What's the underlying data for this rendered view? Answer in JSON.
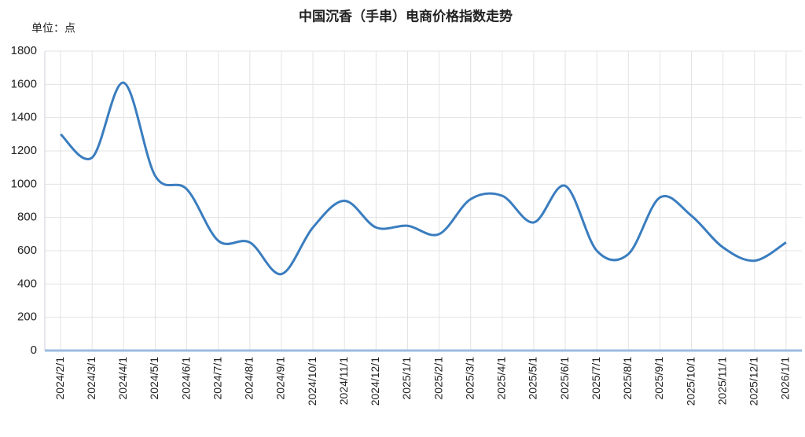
{
  "chart_data": {
    "type": "line",
    "title": "中国沉香（手串）电商价格指数走势",
    "unit_label": "单位：点",
    "categories": [
      "2024/2/1",
      "2024/3/1",
      "2024/4/1",
      "2024/5/1",
      "2024/6/1",
      "2024/7/1",
      "2024/8/1",
      "2024/9/1",
      "2024/10/1",
      "2024/11/1",
      "2024/12/1",
      "2025/1/1",
      "2025/2/1",
      "2025/3/1",
      "2025/4/1",
      "2025/5/1",
      "2025/6/1",
      "2025/7/1",
      "2025/8/1",
      "2025/9/1",
      "2025/10/1",
      "2025/11/1",
      "2025/12/1",
      "2026/1/1"
    ],
    "values": [
      1300,
      1160,
      1610,
      1050,
      970,
      660,
      650,
      460,
      740,
      900,
      740,
      750,
      700,
      910,
      930,
      770,
      990,
      600,
      580,
      920,
      810,
      620,
      540,
      650
    ],
    "color": "#3a7dbf",
    "ylim": [
      0,
      1800
    ],
    "yticks": [
      0,
      200,
      400,
      600,
      800,
      1000,
      1200,
      1400,
      1600,
      1800
    ],
    "grid": true,
    "smooth": true
  }
}
